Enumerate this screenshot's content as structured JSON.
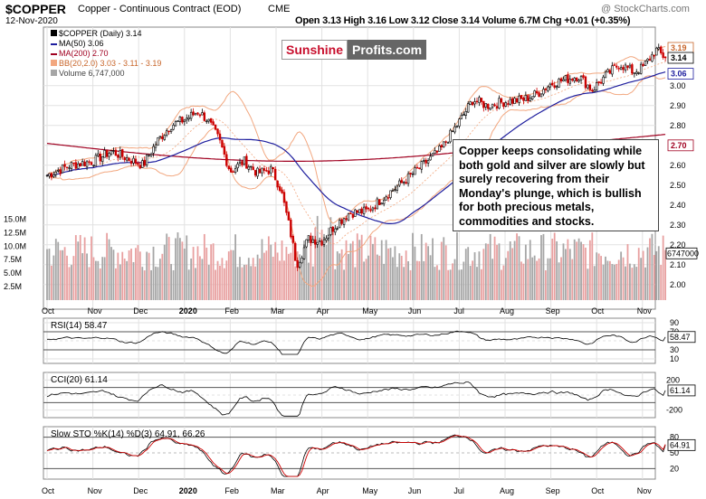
{
  "header": {
    "symbol": "$COPPER",
    "name": "Copper - Continuous Contract (EOD)",
    "exchange": "CME",
    "date": "12-Nov-2020",
    "ohlc": "Open 3.13  High 3.16  Low 3.12  Close 3.14  Volume 6.7M  Chg +0.01 (+0.35%)",
    "watermark": "@ StockCharts.com"
  },
  "legend": {
    "main": "$COPPER (Daily) 3.14",
    "ma50": "MA(50) 3.06",
    "ma200": "MA(200) 2.70",
    "bb": "BB(20,2.0) 3.03 - 3.11 - 3.19",
    "volume": "Volume 6,747,000"
  },
  "logo": {
    "part1": "Sunshine",
    "part2": "Profits.com"
  },
  "annotation": "Copper keeps consolidating while both gold and silver are slowly but surely recovering from their Monday's plunge, which is bullish for both precious metals, commodities and stocks.",
  "indicators": {
    "rsi_label": "RSI(14) 58.47",
    "cci_label": "CCI(20) 61.14",
    "sto_label": "Slow STO %K(14) %D(3) 64.91, 66.26"
  },
  "colors": {
    "up": "#000000",
    "down": "#cc0000",
    "ma50": "#1e1e9e",
    "ma200": "#a00020",
    "bb": "#f2a77f",
    "vol_up": "#a6a6a6",
    "vol_down": "#e8a0a0",
    "rsi_fill": "#3f7a3f",
    "neg_fill": "#8a3030",
    "sto_d": "#cc0000",
    "accent_logo": "#c8102e"
  },
  "chart_data": {
    "type": "candlestick",
    "x_months": [
      "Oct",
      "Nov",
      "Dec",
      "2020",
      "Feb",
      "Mar",
      "Apr",
      "May",
      "Jun",
      "Jul",
      "Aug",
      "Sep",
      "Oct",
      "Nov"
    ],
    "price_axis": {
      "ticks": [
        2.0,
        2.1,
        2.2,
        2.3,
        2.4,
        2.5,
        2.6,
        2.7,
        2.8,
        2.9,
        3.0,
        3.06,
        3.14,
        3.19
      ],
      "ylim": [
        1.94,
        3.24
      ]
    },
    "price_labels": {
      "last": "3.14",
      "bb_upper": "3.19",
      "ma50": "3.06",
      "ma200": "2.70",
      "volume": "6747000"
    },
    "volume_axis": {
      "ticks_label": [
        "2.5M",
        "5.0M",
        "7.5M",
        "10.0M",
        "12.5M",
        "15.0M"
      ]
    },
    "close_anchors": [
      {
        "m": 0.0,
        "v": 2.55
      },
      {
        "m": 0.5,
        "v": 2.6
      },
      {
        "m": 1.0,
        "v": 2.62
      },
      {
        "m": 1.4,
        "v": 2.67
      },
      {
        "m": 1.8,
        "v": 2.63
      },
      {
        "m": 2.1,
        "v": 2.6
      },
      {
        "m": 2.4,
        "v": 2.72
      },
      {
        "m": 2.7,
        "v": 2.8
      },
      {
        "m": 3.0,
        "v": 2.83
      },
      {
        "m": 3.3,
        "v": 2.87
      },
      {
        "m": 3.5,
        "v": 2.83
      },
      {
        "m": 3.75,
        "v": 2.73
      },
      {
        "m": 4.0,
        "v": 2.57
      },
      {
        "m": 4.3,
        "v": 2.62
      },
      {
        "m": 4.6,
        "v": 2.56
      },
      {
        "m": 4.9,
        "v": 2.58
      },
      {
        "m": 5.1,
        "v": 2.48
      },
      {
        "m": 5.3,
        "v": 2.28
      },
      {
        "m": 5.45,
        "v": 2.1
      },
      {
        "m": 5.55,
        "v": 2.15
      },
      {
        "m": 5.7,
        "v": 2.23
      },
      {
        "m": 6.0,
        "v": 2.22
      },
      {
        "m": 6.3,
        "v": 2.3
      },
      {
        "m": 6.6,
        "v": 2.36
      },
      {
        "m": 7.0,
        "v": 2.37
      },
      {
        "m": 7.4,
        "v": 2.45
      },
      {
        "m": 7.8,
        "v": 2.52
      },
      {
        "m": 8.2,
        "v": 2.6
      },
      {
        "m": 8.6,
        "v": 2.68
      },
      {
        "m": 9.0,
        "v": 2.82
      },
      {
        "m": 9.3,
        "v": 2.93
      },
      {
        "m": 9.6,
        "v": 2.9
      },
      {
        "m": 10.0,
        "v": 2.92
      },
      {
        "m": 10.4,
        "v": 2.93
      },
      {
        "m": 10.7,
        "v": 2.96
      },
      {
        "m": 11.0,
        "v": 3.01
      },
      {
        "m": 11.3,
        "v": 3.03
      },
      {
        "m": 11.6,
        "v": 3.05
      },
      {
        "m": 11.9,
        "v": 2.98
      },
      {
        "m": 12.2,
        "v": 3.05
      },
      {
        "m": 12.5,
        "v": 3.11
      },
      {
        "m": 12.8,
        "v": 3.07
      },
      {
        "m": 13.0,
        "v": 3.09
      },
      {
        "m": 13.3,
        "v": 3.18
      },
      {
        "m": 13.5,
        "v": 3.14
      }
    ],
    "ma50_last": 3.06,
    "ma200_last": 2.7,
    "bb_last": [
      3.03,
      3.11,
      3.19
    ],
    "rsi": {
      "last": 58.47,
      "ylim": [
        0,
        100
      ],
      "ticks": [
        10,
        30,
        50,
        70,
        90
      ]
    },
    "cci": {
      "last": 61.14,
      "ylim": [
        -300,
        300
      ],
      "ticks": [
        -200,
        -100,
        0,
        100,
        200
      ]
    },
    "sto": {
      "k_last": 64.91,
      "d_last": 66.26,
      "ylim": [
        0,
        100
      ],
      "ticks": [
        20,
        50,
        80
      ]
    }
  }
}
